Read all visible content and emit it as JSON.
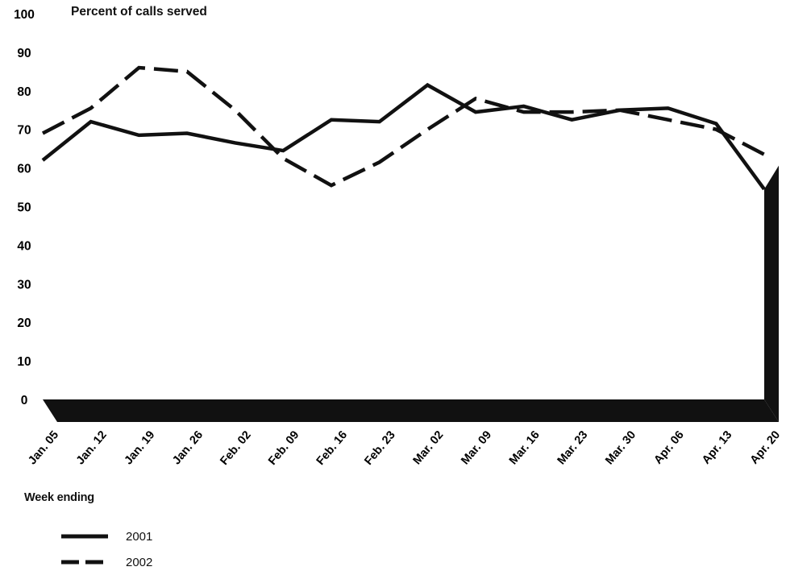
{
  "chart_data": {
    "type": "line",
    "ylabel": "Percent of calls served",
    "xlabel": "Week ending",
    "ylim": [
      0,
      100
    ],
    "yticks": [
      "0",
      "10",
      "20",
      "30",
      "40",
      "50",
      "60",
      "70",
      "80",
      "90",
      "100"
    ],
    "categories": [
      "Jan. 05",
      "Jan. 12",
      "Jan. 19",
      "Jan. 26",
      "Feb. 02",
      "Feb. 09",
      "Feb. 16",
      "Feb. 23",
      "Mar. 02",
      "Mar. 09",
      "Mar. 16",
      "Mar. 23",
      "Mar. 30",
      "Apr. 06",
      "Apr. 13",
      "Apr. 20"
    ],
    "series": [
      {
        "name": "2001",
        "style": "solid",
        "color": "#111111",
        "values": [
          62,
          72,
          68.5,
          69,
          66.5,
          64.5,
          72.5,
          72,
          81.5,
          74.5,
          76,
          72.5,
          75,
          75.5,
          71.5,
          54.5
        ]
      },
      {
        "name": "2002",
        "style": "dashed",
        "color": "#111111",
        "values": [
          69,
          75.5,
          86,
          85,
          75,
          62.5,
          55.5,
          61.5,
          70,
          78,
          74.5,
          74.5,
          75,
          72.5,
          70,
          63.5
        ]
      }
    ],
    "grid": false,
    "legend_position": "bottom-left"
  }
}
